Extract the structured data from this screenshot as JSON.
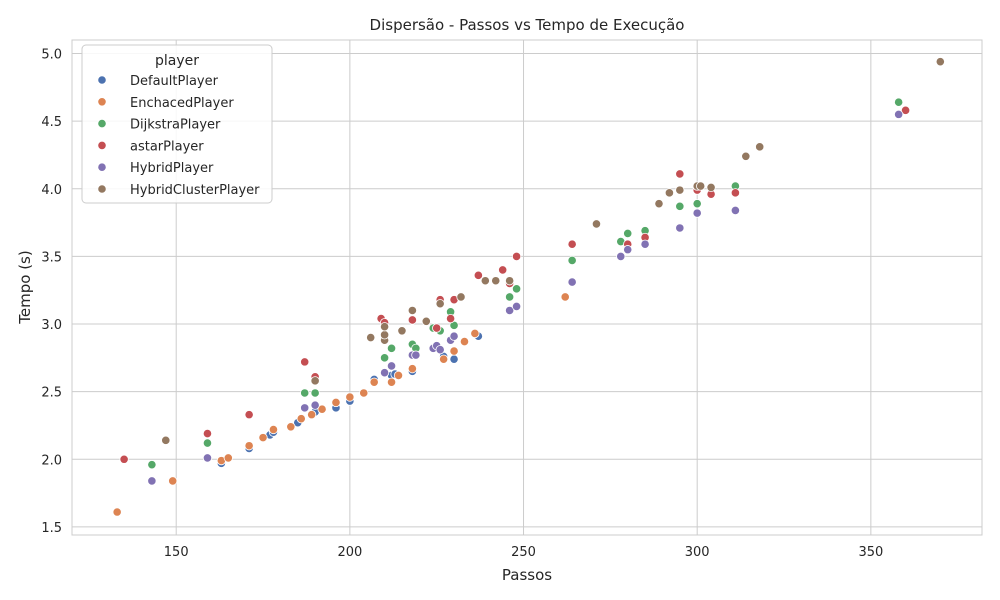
{
  "chart_data": {
    "type": "scatter",
    "title": "Dispersão - Passos vs Tempo de Execução",
    "xlabel": "Passos",
    "ylabel": "Tempo (s)",
    "xlim": [
      120,
      382
    ],
    "ylim": [
      1.44,
      5.1
    ],
    "xticks": [
      150,
      200,
      250,
      300,
      350
    ],
    "yticks": [
      1.5,
      2.0,
      2.5,
      3.0,
      3.5,
      4.0,
      4.5,
      5.0
    ],
    "grid": true,
    "legend": {
      "title": "player",
      "placement": "top-left"
    },
    "series": [
      {
        "name": "DefaultPlayer",
        "color": "#4c72b0",
        "points": [
          [
            163,
            1.97
          ],
          [
            171,
            2.08
          ],
          [
            177,
            2.18
          ],
          [
            178,
            2.2
          ],
          [
            185,
            2.27
          ],
          [
            190,
            2.35
          ],
          [
            196,
            2.38
          ],
          [
            200,
            2.43
          ],
          [
            207,
            2.59
          ],
          [
            212,
            2.62
          ],
          [
            213,
            2.63
          ],
          [
            218,
            2.65
          ],
          [
            227,
            2.76
          ],
          [
            230,
            2.74
          ],
          [
            237,
            2.91
          ]
        ]
      },
      {
        "name": "EnchacedPlayer",
        "color": "#dd8452",
        "points": [
          [
            133,
            1.61
          ],
          [
            149,
            1.84
          ],
          [
            163,
            1.99
          ],
          [
            165,
            2.01
          ],
          [
            171,
            2.1
          ],
          [
            175,
            2.16
          ],
          [
            178,
            2.22
          ],
          [
            183,
            2.24
          ],
          [
            186,
            2.3
          ],
          [
            189,
            2.33
          ],
          [
            192,
            2.37
          ],
          [
            196,
            2.42
          ],
          [
            200,
            2.46
          ],
          [
            204,
            2.49
          ],
          [
            207,
            2.57
          ],
          [
            212,
            2.57
          ],
          [
            214,
            2.62
          ],
          [
            218,
            2.67
          ],
          [
            227,
            2.74
          ],
          [
            230,
            2.8
          ],
          [
            233,
            2.87
          ],
          [
            236,
            2.93
          ],
          [
            262,
            3.2
          ]
        ]
      },
      {
        "name": "DijkstraPlayer",
        "color": "#55a868",
        "points": [
          [
            143,
            1.96
          ],
          [
            159,
            2.12
          ],
          [
            187,
            2.49
          ],
          [
            190,
            2.49
          ],
          [
            210,
            2.75
          ],
          [
            212,
            2.82
          ],
          [
            218,
            2.85
          ],
          [
            219,
            2.82
          ],
          [
            224,
            2.97
          ],
          [
            226,
            2.95
          ],
          [
            229,
            3.09
          ],
          [
            230,
            2.99
          ],
          [
            246,
            3.2
          ],
          [
            248,
            3.26
          ],
          [
            264,
            3.47
          ],
          [
            278,
            3.61
          ],
          [
            280,
            3.67
          ],
          [
            285,
            3.69
          ],
          [
            295,
            3.87
          ],
          [
            300,
            3.89
          ],
          [
            311,
            4.02
          ],
          [
            358,
            4.64
          ]
        ]
      },
      {
        "name": "astarPlayer",
        "color": "#c44e52",
        "points": [
          [
            135,
            2.0
          ],
          [
            159,
            2.19
          ],
          [
            171,
            2.33
          ],
          [
            187,
            2.72
          ],
          [
            190,
            2.61
          ],
          [
            209,
            3.04
          ],
          [
            210,
            3.01
          ],
          [
            218,
            3.03
          ],
          [
            225,
            2.97
          ],
          [
            226,
            3.18
          ],
          [
            229,
            3.04
          ],
          [
            230,
            3.18
          ],
          [
            237,
            3.36
          ],
          [
            244,
            3.4
          ],
          [
            246,
            3.3
          ],
          [
            248,
            3.5
          ],
          [
            264,
            3.59
          ],
          [
            280,
            3.59
          ],
          [
            285,
            3.64
          ],
          [
            295,
            4.11
          ],
          [
            300,
            3.99
          ],
          [
            304,
            3.96
          ],
          [
            311,
            3.97
          ],
          [
            360,
            4.58
          ]
        ]
      },
      {
        "name": "HybridPlayer",
        "color": "#8172b3",
        "points": [
          [
            143,
            1.84
          ],
          [
            159,
            2.01
          ],
          [
            187,
            2.38
          ],
          [
            190,
            2.4
          ],
          [
            210,
            2.64
          ],
          [
            212,
            2.69
          ],
          [
            218,
            2.77
          ],
          [
            219,
            2.77
          ],
          [
            224,
            2.82
          ],
          [
            225,
            2.84
          ],
          [
            226,
            2.81
          ],
          [
            229,
            2.88
          ],
          [
            230,
            2.91
          ],
          [
            246,
            3.1
          ],
          [
            248,
            3.13
          ],
          [
            264,
            3.31
          ],
          [
            278,
            3.5
          ],
          [
            280,
            3.55
          ],
          [
            285,
            3.59
          ],
          [
            295,
            3.71
          ],
          [
            300,
            3.82
          ],
          [
            311,
            3.84
          ],
          [
            358,
            4.55
          ]
        ]
      },
      {
        "name": "HybridClusterPlayer",
        "color": "#937860",
        "points": [
          [
            147,
            2.14
          ],
          [
            190,
            2.58
          ],
          [
            206,
            2.9
          ],
          [
            210,
            2.88
          ],
          [
            210,
            2.92
          ],
          [
            210,
            2.98
          ],
          [
            215,
            2.95
          ],
          [
            218,
            3.1
          ],
          [
            222,
            3.02
          ],
          [
            226,
            3.15
          ],
          [
            232,
            3.2
          ],
          [
            239,
            3.32
          ],
          [
            242,
            3.32
          ],
          [
            246,
            3.32
          ],
          [
            271,
            3.74
          ],
          [
            289,
            3.89
          ],
          [
            292,
            3.97
          ],
          [
            295,
            3.99
          ],
          [
            300,
            4.02
          ],
          [
            301,
            4.02
          ],
          [
            304,
            4.01
          ],
          [
            314,
            4.24
          ],
          [
            318,
            4.31
          ],
          [
            370,
            4.94
          ]
        ]
      }
    ]
  }
}
